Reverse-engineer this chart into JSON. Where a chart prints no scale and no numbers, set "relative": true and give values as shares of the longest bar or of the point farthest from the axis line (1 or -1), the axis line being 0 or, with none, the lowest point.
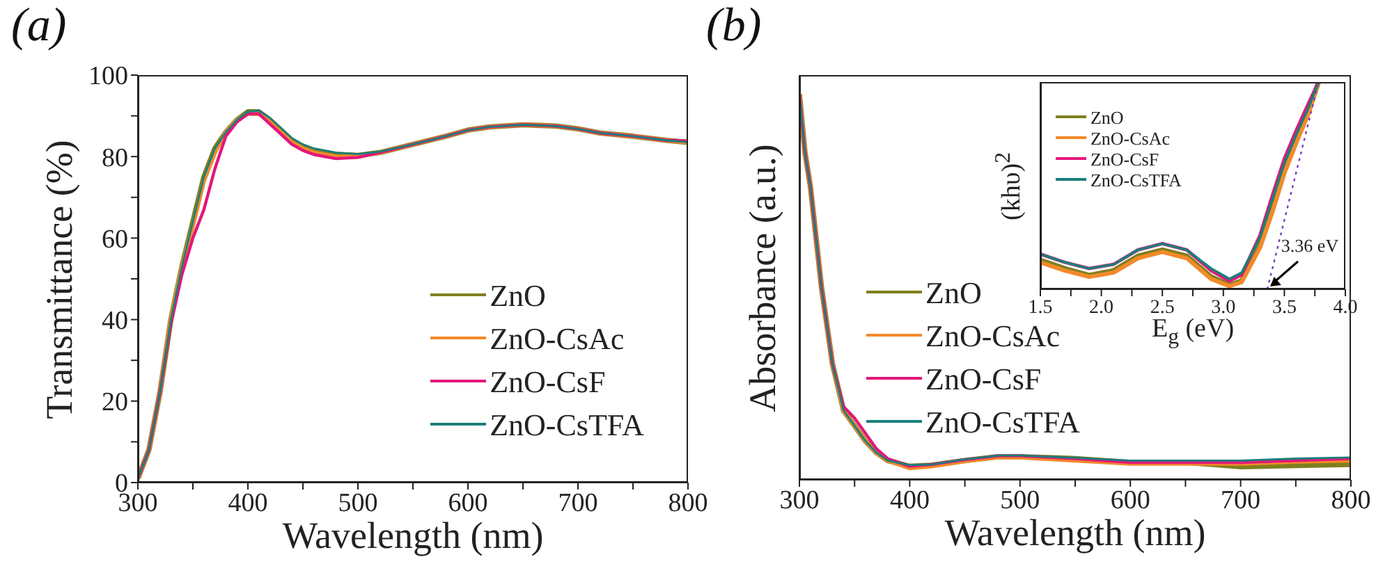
{
  "chart_data": [
    {
      "type": "line",
      "xlabel": "Wavelength (nm)",
      "ylabel": "Transmittance (%)",
      "annotations": [
        "(a)"
      ],
      "legend": "bottom right",
      "grid": false,
      "marker": "none",
      "line_style": "solid",
      "xlim": [
        300,
        800
      ],
      "xticks": [
        300,
        {
          "value": 350,
          "label": null
        },
        400,
        {
          "value": 450,
          "label": null
        },
        500,
        {
          "value": 550,
          "label": null
        },
        600,
        {
          "value": 650,
          "label": null
        },
        700,
        {
          "value": 750,
          "label": null
        },
        800
      ],
      "ylim": [
        0,
        100
      ],
      "yticks": [
        0,
        {
          "value": 10,
          "label": null
        },
        20,
        {
          "value": 30,
          "label": null
        },
        40,
        {
          "value": 50,
          "label": null
        },
        60,
        {
          "value": 70,
          "label": null
        },
        80,
        {
          "value": 90,
          "label": null
        },
        100
      ],
      "x": [
        300,
        310,
        320,
        330,
        340,
        350,
        360,
        370,
        380,
        390,
        400,
        410,
        420,
        430,
        440,
        450,
        460,
        480,
        500,
        520,
        550,
        580,
        600,
        620,
        650,
        680,
        700,
        720,
        750,
        780,
        800
      ],
      "series": [
        {
          "name": "ZnO",
          "color": "#7f7f1f",
          "values": [
            1,
            8,
            22,
            40,
            53,
            64,
            75,
            82,
            86,
            89,
            91,
            91,
            89,
            86.5,
            84,
            82.5,
            81.5,
            80.5,
            80.3,
            81,
            83,
            85,
            86.5,
            87.3,
            87.8,
            87.5,
            86.8,
            85.8,
            85,
            84,
            83.5
          ]
        },
        {
          "name": "ZnO-CsAc",
          "color": "#f28a2a",
          "values": [
            1,
            8,
            22,
            40,
            53,
            63,
            74,
            81,
            86,
            89,
            90.5,
            90.5,
            88.5,
            86,
            83.5,
            82,
            81,
            80,
            80,
            81,
            83,
            85,
            86.5,
            87.3,
            87.8,
            87.5,
            86.8,
            85.8,
            85,
            84,
            83.5
          ]
        },
        {
          "name": "ZnO-CsF",
          "color": "#e3177a",
          "values": [
            1,
            8,
            22,
            39,
            51,
            60,
            67,
            77,
            85,
            88.5,
            90.5,
            90.5,
            88,
            85.5,
            83,
            81.5,
            80.5,
            79.5,
            79.8,
            81,
            83,
            85,
            86.5,
            87.3,
            87.8,
            87.5,
            86.8,
            85.8,
            85,
            84,
            83.8
          ]
        },
        {
          "name": "ZnO-CsTFA",
          "color": "#1a7f7a",
          "values": [
            1,
            8,
            22,
            40,
            53,
            64,
            75,
            82,
            86,
            89,
            91,
            91.3,
            89.5,
            87,
            84.5,
            83,
            82,
            81,
            80.6,
            81.2,
            83,
            85,
            86.5,
            87.3,
            87.8,
            87.5,
            86.8,
            85.8,
            85,
            84,
            83.5
          ]
        }
      ]
    },
    {
      "type": "line",
      "relative": true,
      "xlabel": "Wavelength (nm)",
      "ylabel": "Absorbance (a.u.)",
      "annotations": [
        "(b)"
      ],
      "legend": "bottom left",
      "grid": false,
      "marker": "none",
      "line_style": "solid",
      "tick_labels": "x",
      "xlim": [
        300,
        800
      ],
      "xticks": [
        300,
        {
          "value": 350,
          "label": null
        },
        400,
        {
          "value": 450,
          "label": null
        },
        500,
        {
          "value": 550,
          "label": null
        },
        600,
        {
          "value": 650,
          "label": null
        },
        700,
        {
          "value": 750,
          "label": null
        },
        800
      ],
      "x": [
        300,
        305,
        310,
        320,
        330,
        340,
        350,
        360,
        370,
        380,
        400,
        420,
        450,
        480,
        500,
        550,
        600,
        650,
        700,
        750,
        800
      ],
      "series": [
        {
          "name": "ZnO",
          "color": "#7f7f1f",
          "values": [
            1,
            0.85,
            0.76,
            0.5,
            0.3,
            0.18,
            0.14,
            0.1,
            0.07,
            0.05,
            0.035,
            0.038,
            0.05,
            0.06,
            0.06,
            0.055,
            0.045,
            0.045,
            0.034,
            0.037,
            0.04
          ]
        },
        {
          "name": "ZnO-CsAc",
          "color": "#f28a2a",
          "values": [
            1,
            0.85,
            0.76,
            0.5,
            0.3,
            0.18,
            0.14,
            0.1,
            0.07,
            0.05,
            0.03,
            0.035,
            0.048,
            0.058,
            0.058,
            0.05,
            0.042,
            0.042,
            0.042,
            0.047,
            0.05
          ]
        },
        {
          "name": "ZnO-CsF",
          "color": "#e3177a",
          "values": [
            1,
            0.85,
            0.76,
            0.5,
            0.3,
            0.19,
            0.16,
            0.12,
            0.08,
            0.055,
            0.035,
            0.04,
            0.052,
            0.062,
            0.062,
            0.055,
            0.045,
            0.045,
            0.045,
            0.05,
            0.055
          ]
        },
        {
          "name": "ZnO-CsTFA",
          "color": "#1a7f7a",
          "values": [
            1,
            0.85,
            0.76,
            0.5,
            0.3,
            0.18,
            0.14,
            0.1,
            0.07,
            0.05,
            0.038,
            0.04,
            0.053,
            0.063,
            0.063,
            0.057,
            0.05,
            0.05,
            0.05,
            0.055,
            0.058
          ]
        }
      ]
    },
    {
      "type": "line",
      "relative": true,
      "xlabel": "E$_{g}$ (eV)",
      "ylabel": "(khυ)$^{2}$",
      "annotations": [
        {
          "text": "3.36 eV",
          "x": 3.36,
          "y": 0
        }
      ],
      "legend": "top left",
      "grid": false,
      "marker": "none",
      "line_style": "solid",
      "tick_labels": "x",
      "xlim": [
        1.5,
        4.0
      ],
      "xticks": [
        1.5,
        {
          "value": 1.75,
          "label": null
        },
        "2.0",
        {
          "value": 2.25,
          "label": null
        },
        2.5,
        {
          "value": 2.75,
          "label": null
        },
        "3.0",
        {
          "value": 3.25,
          "label": null
        },
        3.5,
        {
          "value": 3.75,
          "label": null
        },
        "4.0"
      ],
      "x": [
        1.5,
        1.7,
        1.9,
        2.1,
        2.3,
        2.5,
        2.7,
        2.9,
        3.05,
        3.15,
        3.3,
        3.4,
        3.5,
        3.6,
        3.7,
        3.78
      ],
      "series": [
        {
          "name": "ZnO",
          "color": "#7f7f1f",
          "values": [
            0.14,
            0.1,
            0.067,
            0.09,
            0.16,
            0.19,
            0.16,
            0.06,
            0.02,
            0.04,
            0.21,
            0.38,
            0.57,
            0.72,
            0.86,
            1
          ]
        },
        {
          "name": "ZnO-CsAc",
          "color": "#f28a2a",
          "values": [
            0.13,
            0.09,
            0.06,
            0.08,
            0.15,
            0.18,
            0.15,
            0.05,
            0.015,
            0.035,
            0.2,
            0.37,
            0.56,
            0.71,
            0.85,
            1
          ]
        },
        {
          "name": "ZnO-CsF",
          "color": "#e3177a",
          "values": [
            0.17,
            0.13,
            0.1,
            0.12,
            0.19,
            0.22,
            0.19,
            0.09,
            0.04,
            0.07,
            0.26,
            0.45,
            0.63,
            0.77,
            0.9,
            1
          ]
        },
        {
          "name": "ZnO-CsTFA",
          "color": "#1a7f7a",
          "values": [
            0.17,
            0.13,
            0.1,
            0.12,
            0.19,
            0.22,
            0.19,
            0.1,
            0.05,
            0.08,
            0.25,
            0.43,
            0.61,
            0.75,
            0.88,
            1
          ]
        },
        {
          "type": "line",
          "color": "#7a3fc0",
          "line_style": "dotted",
          "x": [
            3.36,
            3.78
          ],
          "values": [
            0,
            1
          ]
        }
      ]
    }
  ]
}
